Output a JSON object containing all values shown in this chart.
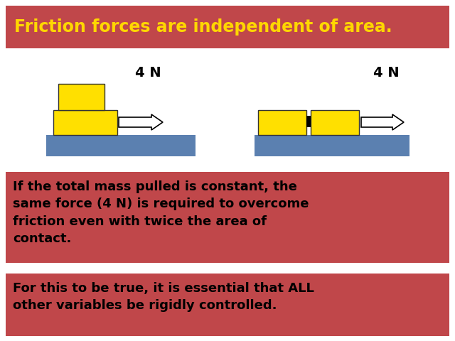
{
  "title": "Friction forces are independent of area.",
  "title_color": "#FFD700",
  "title_bg_color": "#C0474A",
  "title_fontsize": 17,
  "yellow_color": "#FFE000",
  "blue_color": "#5B80B0",
  "arrow_color": "#FFFFFF",
  "arrow_edge_color": "#000000",
  "text1": "If the total mass pulled is constant, the\nsame force (4 N) is required to overcome\nfriction even with twice the area of\ncontact.",
  "text2": "For this to be true, it is essential that ALL\nother variables be rigidly controlled.",
  "text_bg_color": "#C0474A",
  "text_color": "#000000",
  "force_label": "4 N",
  "bg_color": "#FFFFFF",
  "gap_color": "#FFFFFF"
}
